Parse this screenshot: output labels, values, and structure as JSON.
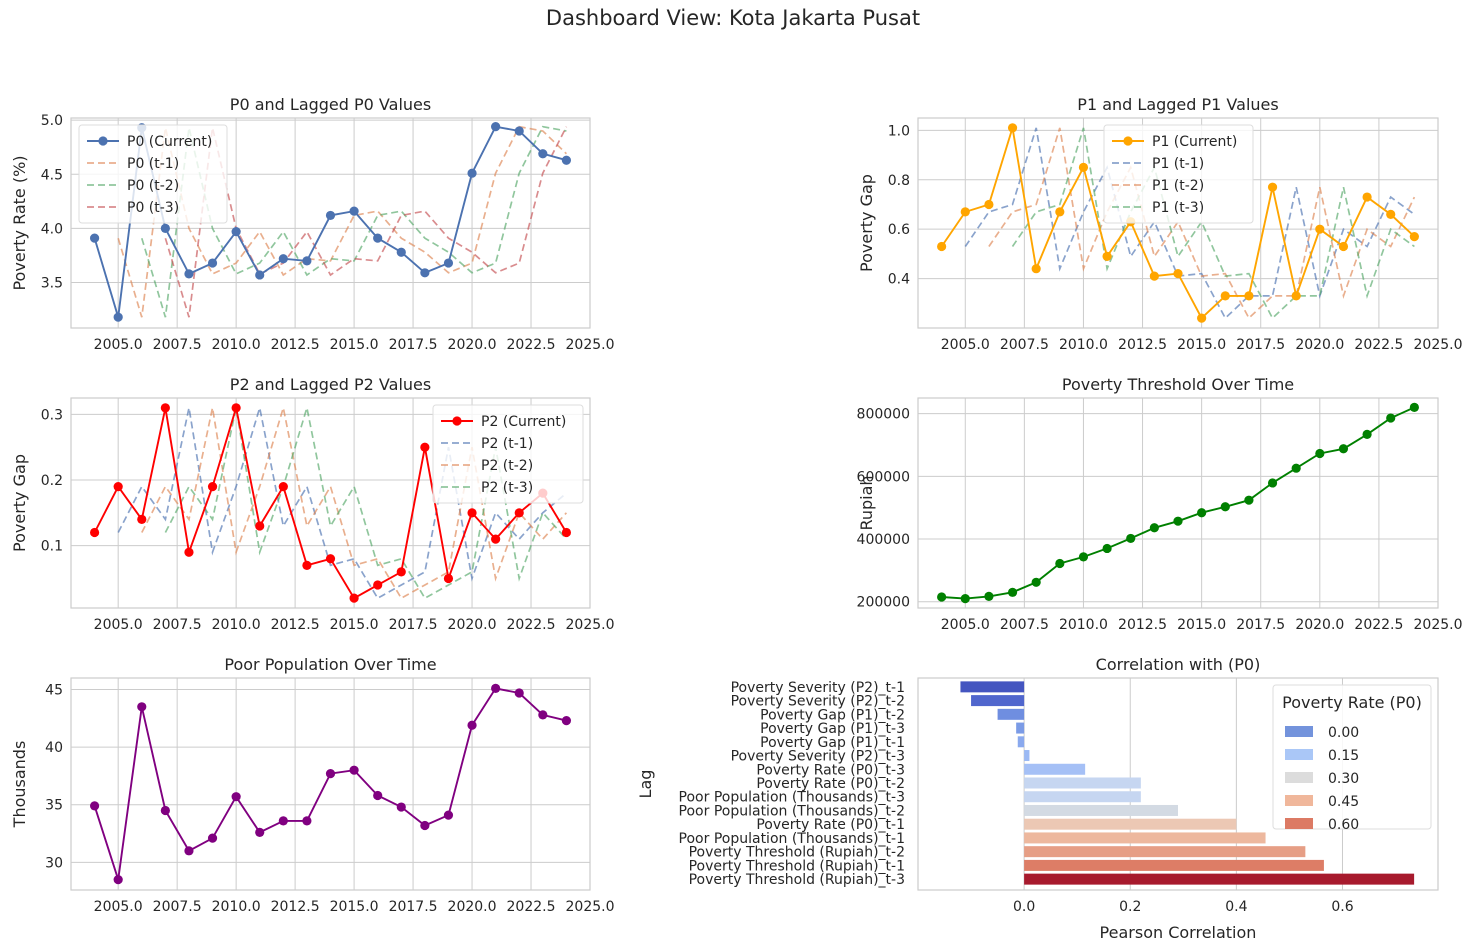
{
  "figure": {
    "suptitle": "Dashboard View: Kota Jakarta Pusat"
  },
  "chart_data": [
    {
      "type": "line",
      "title": "P0 and Lagged P0 Values",
      "xlabel": "",
      "ylabel": "Poverty Rate (%)",
      "xlim": [
        2003,
        2025
      ],
      "ylim": [
        3.08,
        5.02
      ],
      "xticks": [
        2005,
        2007.5,
        2010,
        2012.5,
        2015,
        2017.5,
        2020,
        2022.5,
        2025
      ],
      "xtick_labels": [
        "2005.0",
        "2007.5",
        "2010.0",
        "2012.5",
        "2015.0",
        "2017.5",
        "2020.0",
        "2022.5",
        "2025.0"
      ],
      "yticks": [
        3.5,
        4.0,
        4.5,
        5.0
      ],
      "ytick_labels": [
        "3.5",
        "4.0",
        "4.5",
        "5.0"
      ],
      "grid": true,
      "legend_position": "top-left",
      "x": [
        2004,
        2005,
        2006,
        2007,
        2008,
        2009,
        2010,
        2011,
        2012,
        2013,
        2014,
        2015,
        2016,
        2017,
        2018,
        2019,
        2020,
        2021,
        2022,
        2023,
        2024
      ],
      "series": [
        {
          "name": "P0 (Current)",
          "color": "#4c72b0",
          "dash": false,
          "marker": true,
          "lag": 0,
          "values": [
            3.91,
            3.18,
            4.93,
            4.0,
            3.58,
            3.68,
            3.97,
            3.57,
            3.72,
            3.7,
            4.12,
            4.16,
            3.91,
            3.78,
            3.59,
            3.68,
            4.51,
            4.94,
            4.9,
            4.69,
            4.63
          ]
        },
        {
          "name": "P0 (t-1)",
          "color": "#dd8452",
          "dash": true,
          "marker": false,
          "lag": 1
        },
        {
          "name": "P0 (t-2)",
          "color": "#55a868",
          "dash": true,
          "marker": false,
          "lag": 2
        },
        {
          "name": "P0 (t-3)",
          "color": "#c44e52",
          "dash": true,
          "marker": false,
          "lag": 3
        }
      ]
    },
    {
      "type": "line",
      "title": "P1 and Lagged P1 Values",
      "xlabel": "",
      "ylabel": "Poverty Gap",
      "xlim": [
        2003,
        2025
      ],
      "ylim": [
        0.2,
        1.05
      ],
      "xticks": [
        2005,
        2007.5,
        2010,
        2012.5,
        2015,
        2017.5,
        2020,
        2022.5,
        2025
      ],
      "xtick_labels": [
        "2005.0",
        "2007.5",
        "2010.0",
        "2012.5",
        "2015.0",
        "2017.5",
        "2020.0",
        "2022.5",
        "2025.0"
      ],
      "yticks": [
        0.4,
        0.6,
        0.8,
        1.0
      ],
      "ytick_labels": [
        "0.4",
        "0.6",
        "0.8",
        "1.0"
      ],
      "grid": true,
      "legend_position": "top-center",
      "x": [
        2004,
        2005,
        2006,
        2007,
        2008,
        2009,
        2010,
        2011,
        2012,
        2013,
        2014,
        2015,
        2016,
        2017,
        2018,
        2019,
        2020,
        2021,
        2022,
        2023,
        2024
      ],
      "series": [
        {
          "name": "P1 (Current)",
          "color": "#ffa500",
          "dash": false,
          "marker": true,
          "lag": 0,
          "values": [
            0.53,
            0.67,
            0.7,
            1.01,
            0.44,
            0.67,
            0.85,
            0.49,
            0.63,
            0.41,
            0.42,
            0.24,
            0.33,
            0.33,
            0.77,
            0.33,
            0.6,
            0.53,
            0.73,
            0.66,
            0.57
          ]
        },
        {
          "name": "P1 (t-1)",
          "color": "#4c72b0",
          "dash": true,
          "marker": false,
          "lag": 1
        },
        {
          "name": "P1 (t-2)",
          "color": "#dd8452",
          "dash": true,
          "marker": false,
          "lag": 2
        },
        {
          "name": "P1 (t-3)",
          "color": "#55a868",
          "dash": true,
          "marker": false,
          "lag": 3
        }
      ]
    },
    {
      "type": "line",
      "title": "P2 and Lagged P2 Values",
      "xlabel": "",
      "ylabel": "Poverty Gap",
      "xlim": [
        2003,
        2025
      ],
      "ylim": [
        0.005,
        0.325
      ],
      "xticks": [
        2005,
        2007.5,
        2010,
        2012.5,
        2015,
        2017.5,
        2020,
        2022.5,
        2025
      ],
      "xtick_labels": [
        "2005.0",
        "2007.5",
        "2010.0",
        "2012.5",
        "2015.0",
        "2017.5",
        "2020.0",
        "2022.5",
        "2025.0"
      ],
      "yticks": [
        0.1,
        0.2,
        0.3
      ],
      "ytick_labels": [
        "0.1",
        "0.2",
        "0.3"
      ],
      "grid": true,
      "legend_position": "top-right",
      "x": [
        2004,
        2005,
        2006,
        2007,
        2008,
        2009,
        2010,
        2011,
        2012,
        2013,
        2014,
        2015,
        2016,
        2017,
        2018,
        2019,
        2020,
        2021,
        2022,
        2023,
        2024
      ],
      "series": [
        {
          "name": "P2 (Current)",
          "color": "#ff0000",
          "dash": false,
          "marker": true,
          "lag": 0,
          "values": [
            0.12,
            0.19,
            0.14,
            0.31,
            0.09,
            0.19,
            0.31,
            0.13,
            0.19,
            0.07,
            0.08,
            0.02,
            0.04,
            0.06,
            0.25,
            0.05,
            0.15,
            0.11,
            0.15,
            0.18,
            0.12
          ]
        },
        {
          "name": "P2 (t-1)",
          "color": "#4c72b0",
          "dash": true,
          "marker": false,
          "lag": 1
        },
        {
          "name": "P2 (t-2)",
          "color": "#dd8452",
          "dash": true,
          "marker": false,
          "lag": 2
        },
        {
          "name": "P2 (t-3)",
          "color": "#55a868",
          "dash": true,
          "marker": false,
          "lag": 3
        }
      ]
    },
    {
      "type": "line",
      "title": "Poverty Threshold Over Time",
      "xlabel": "",
      "ylabel": "Rupiah",
      "xlim": [
        2003,
        2025
      ],
      "ylim": [
        180000,
        850000
      ],
      "xticks": [
        2005,
        2007.5,
        2010,
        2012.5,
        2015,
        2017.5,
        2020,
        2022.5,
        2025
      ],
      "xtick_labels": [
        "2005.0",
        "2007.5",
        "2010.0",
        "2012.5",
        "2015.0",
        "2017.5",
        "2020.0",
        "2022.5",
        "2025.0"
      ],
      "yticks": [
        200000,
        400000,
        600000,
        800000
      ],
      "ytick_labels": [
        "200000",
        "400000",
        "600000",
        "800000"
      ],
      "grid": true,
      "x": [
        2004,
        2005,
        2006,
        2007,
        2008,
        2009,
        2010,
        2011,
        2012,
        2013,
        2014,
        2015,
        2016,
        2017,
        2018,
        2019,
        2020,
        2021,
        2022,
        2023,
        2024
      ],
      "series": [
        {
          "color": "#008000",
          "dash": false,
          "marker": true,
          "lag": 0,
          "values": [
            215000,
            210000,
            217000,
            230000,
            262000,
            322000,
            343000,
            370000,
            402000,
            436000,
            457000,
            484000,
            503000,
            524000,
            579000,
            626000,
            673000,
            688000,
            734000,
            786000,
            820000
          ]
        }
      ]
    },
    {
      "type": "line",
      "title": "Poor Population Over Time",
      "xlabel": "",
      "ylabel": "Thousands",
      "xlim": [
        2003,
        2025
      ],
      "ylim": [
        27.6,
        46.0
      ],
      "xticks": [
        2005,
        2007.5,
        2010,
        2012.5,
        2015,
        2017.5,
        2020,
        2022.5,
        2025
      ],
      "xtick_labels": [
        "2005.0",
        "2007.5",
        "2010.0",
        "2012.5",
        "2015.0",
        "2017.5",
        "2020.0",
        "2022.5",
        "2025.0"
      ],
      "yticks": [
        30,
        35,
        40,
        45
      ],
      "ytick_labels": [
        "30",
        "35",
        "40",
        "45"
      ],
      "grid": true,
      "x": [
        2004,
        2005,
        2006,
        2007,
        2008,
        2009,
        2010,
        2011,
        2012,
        2013,
        2014,
        2015,
        2016,
        2017,
        2018,
        2019,
        2020,
        2021,
        2022,
        2023,
        2024
      ],
      "series": [
        {
          "color": "#800080",
          "dash": false,
          "marker": true,
          "lag": 0,
          "values": [
            34.9,
            28.5,
            43.5,
            34.5,
            31.0,
            32.1,
            35.7,
            32.6,
            33.6,
            33.6,
            37.7,
            38.0,
            35.8,
            34.8,
            33.2,
            34.1,
            41.9,
            45.1,
            44.7,
            42.8,
            42.3
          ]
        }
      ]
    },
    {
      "type": "bar",
      "orientation": "horizontal",
      "title": "Correlation with (P0)",
      "xlabel": "Pearson Correlation",
      "ylabel": "Lag",
      "xlim": [
        -0.2,
        0.78
      ],
      "xticks": [
        0.0,
        0.2,
        0.4,
        0.6
      ],
      "xtick_labels": [
        "0.0",
        "0.2",
        "0.4",
        "0.6"
      ],
      "grid": true,
      "legend_title": "Poverty Rate (P0)",
      "legend_position": "top-right",
      "legend_entries": [
        {
          "label": "0.00",
          "color": "#7393dc"
        },
        {
          "label": "0.15",
          "color": "#aac7f7"
        },
        {
          "label": "0.30",
          "color": "#dcdcdc"
        },
        {
          "label": "0.45",
          "color": "#f0b79b"
        },
        {
          "label": "0.60",
          "color": "#dc7a64"
        }
      ],
      "categories": [
        "Poverty Severity (P2)_t-1",
        "Poverty Severity (P2)_t-2",
        "Poverty Gap (P1)_t-2",
        "Poverty Gap (P1)_t-3",
        "Poverty Gap (P1)_t-1",
        "Poverty Severity (P2)_t-3",
        "Poverty Rate (P0)_t-3",
        "Poverty Rate (P0)_t-2",
        "Poor Population (Thousands)_t-3",
        "Poor Population (Thousands)_t-2",
        "Poverty Rate (P0)_t-1",
        "Poor Population (Thousands)_t-1",
        "Poverty Threshold (Rupiah)_t-2",
        "Poverty Threshold (Rupiah)_t-1",
        "Poverty Threshold (Rupiah)_t-3"
      ],
      "values": [
        -0.12,
        -0.1,
        -0.05,
        -0.015,
        -0.012,
        0.01,
        0.115,
        0.22,
        0.22,
        0.29,
        0.4,
        0.455,
        0.53,
        0.565,
        0.735
      ],
      "colors": [
        "#4455c0",
        "#5066cd",
        "#6f8ee0",
        "#7b9be6",
        "#8aa9ee",
        "#9bb9f4",
        "#a5c0f6",
        "#c6d6f1",
        "#c6d6f1",
        "#d3dae3",
        "#ecc8b4",
        "#edb89e",
        "#e69e85",
        "#dd7d66",
        "#a71a2d"
      ]
    }
  ]
}
